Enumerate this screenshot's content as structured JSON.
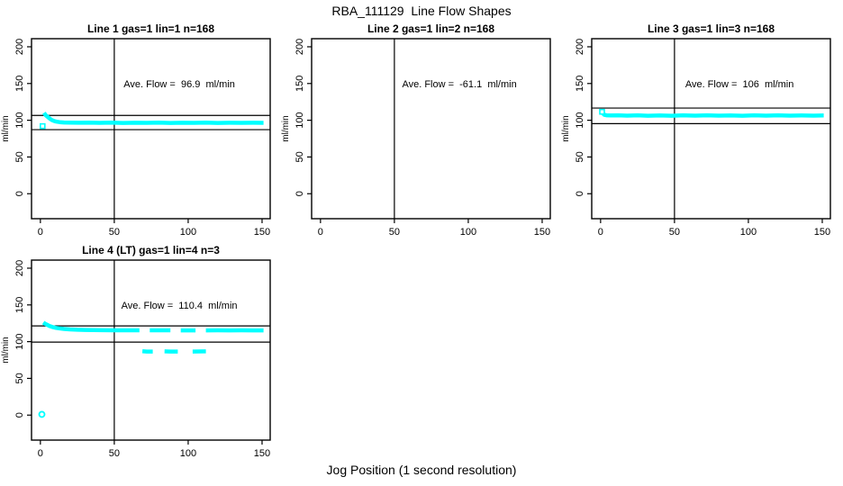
{
  "header": {
    "title": "RBA_111129  Line Flow Shapes"
  },
  "footer": {
    "xlabel": "Jog Position (1 second resolution)"
  },
  "colors": {
    "series": "#00FFFF",
    "axis": "#000000",
    "background": "#FFFFFF"
  },
  "chart_data": {
    "type": "scatter",
    "title": "RBA_111129  Line Flow Shapes",
    "xlabel": "Jog Position (1 second resolution)",
    "ylabel": "ml/min",
    "xlim": [
      -6,
      155.5
    ],
    "ylim": [
      -34,
      211
    ],
    "xticks": [
      0,
      50,
      100,
      150
    ],
    "yticks": [
      0,
      50,
      100,
      150,
      200
    ],
    "grid": false,
    "legend": "none",
    "panels": [
      {
        "id": "line-1",
        "title": "Line 1 gas=1 lin=1 n=168",
        "annotation": "Ave. Flow =  96.9  ml/min",
        "ave_flow": 96.9,
        "n": 168,
        "ylabel": "ml/min",
        "vline_x": 50,
        "hlines": [
          106.6,
          87.2
        ],
        "segments": [
          [
            [
              2.5,
              110
            ],
            [
              3.5,
              107
            ],
            [
              5,
              104.5
            ],
            [
              6.5,
              102
            ],
            [
              8,
              100
            ],
            [
              9.5,
              98.8
            ],
            [
              11,
              98
            ],
            [
              13,
              97.4
            ],
            [
              16,
              97
            ],
            [
              20,
              96.8
            ],
            [
              26,
              96.6
            ],
            [
              33,
              96.8
            ],
            [
              40,
              96.5
            ],
            [
              48,
              96.7
            ],
            [
              56,
              96.4
            ],
            [
              64,
              96.6
            ],
            [
              72,
              96.5
            ],
            [
              80,
              96.7
            ],
            [
              88,
              96.4
            ],
            [
              96,
              96.6
            ],
            [
              104,
              96.5
            ],
            [
              112,
              96.7
            ],
            [
              120,
              96.4
            ],
            [
              128,
              96.6
            ],
            [
              136,
              96.5
            ],
            [
              144,
              96.6
            ],
            [
              151,
              96.5
            ]
          ]
        ],
        "markers": [
          {
            "shape": "square",
            "x": 1.5,
            "y": 92
          }
        ]
      },
      {
        "id": "line-2",
        "title": "Line 2 gas=1 lin=2 n=168",
        "annotation": "Ave. Flow =  -61.1  ml/min",
        "ave_flow": -61.1,
        "n": 168,
        "ylabel": "ml/min",
        "vline_x": 50,
        "hlines": [],
        "segments": [],
        "markers": []
      },
      {
        "id": "line-3",
        "title": "Line 3 gas=1 lin=3 n=168",
        "annotation": "Ave. Flow =  106  ml/min",
        "ave_flow": 106,
        "n": 168,
        "ylabel": "ml/min",
        "vline_x": 50,
        "hlines": [
          116.6,
          95.4
        ],
        "segments": [
          [
            [
              1.5,
              109.5
            ],
            [
              2.5,
              107.5
            ],
            [
              4,
              106.8
            ],
            [
              7,
              106.5
            ],
            [
              12,
              106.8
            ],
            [
              18,
              106.3
            ],
            [
              25,
              106.8
            ],
            [
              32,
              106.2
            ],
            [
              40,
              106.6
            ],
            [
              48,
              106.2
            ],
            [
              56,
              106.7
            ],
            [
              64,
              106.3
            ],
            [
              72,
              106.8
            ],
            [
              80,
              106.3
            ],
            [
              88,
              106.6
            ],
            [
              96,
              106.2
            ],
            [
              104,
              106.7
            ],
            [
              112,
              106.3
            ],
            [
              120,
              106.8
            ],
            [
              128,
              106.3
            ],
            [
              136,
              106.6
            ],
            [
              144,
              106.3
            ],
            [
              151,
              106.5
            ]
          ]
        ],
        "markers": [
          {
            "shape": "square",
            "x": 1,
            "y": 111.5
          }
        ]
      },
      {
        "id": "line-4-lt",
        "title": "Line 4 (LT) gas=1 lin=4 n=3",
        "annotation": "Ave. Flow =  110.4  ml/min",
        "ave_flow": 110.4,
        "n": 3,
        "ylabel": "ml/min",
        "vline_x": 50,
        "hlines": [
          121.4,
          99.4
        ],
        "segments": [
          [
            [
              2,
              126
            ],
            [
              3,
              124.5
            ],
            [
              4.5,
              123
            ],
            [
              6,
              121.5
            ],
            [
              8,
              120
            ],
            [
              10.5,
              118.8
            ],
            [
              13,
              118
            ],
            [
              16,
              117.3
            ],
            [
              20,
              116.7
            ],
            [
              25,
              116.2
            ],
            [
              30,
              115.9
            ],
            [
              36,
              115.7
            ],
            [
              42,
              115.6
            ],
            [
              50,
              115.5
            ],
            [
              58,
              115.4
            ],
            [
              67,
              115.4
            ]
          ],
          [
            [
              74,
              115.4
            ],
            [
              80,
              115.4
            ],
            [
              88,
              115.4
            ]
          ],
          [
            [
              95,
              115.3
            ],
            [
              100,
              115.3
            ],
            [
              105,
              115.3
            ]
          ],
          [
            [
              112,
              115.3
            ],
            [
              120,
              115.4
            ],
            [
              128,
              115.3
            ],
            [
              136,
              115.4
            ],
            [
              144,
              115.3
            ],
            [
              151,
              115.3
            ]
          ],
          [
            [
              69,
              87
            ],
            [
              72,
              86.6
            ],
            [
              76,
              86.6
            ]
          ],
          [
            [
              84,
              86.8
            ],
            [
              88,
              86.5
            ],
            [
              93,
              86.6
            ]
          ],
          [
            [
              103,
              86.5
            ],
            [
              107,
              86.7
            ],
            [
              112,
              86.8
            ]
          ]
        ],
        "markers": [
          {
            "shape": "circle",
            "x": 1,
            "y": 1
          }
        ]
      }
    ]
  }
}
